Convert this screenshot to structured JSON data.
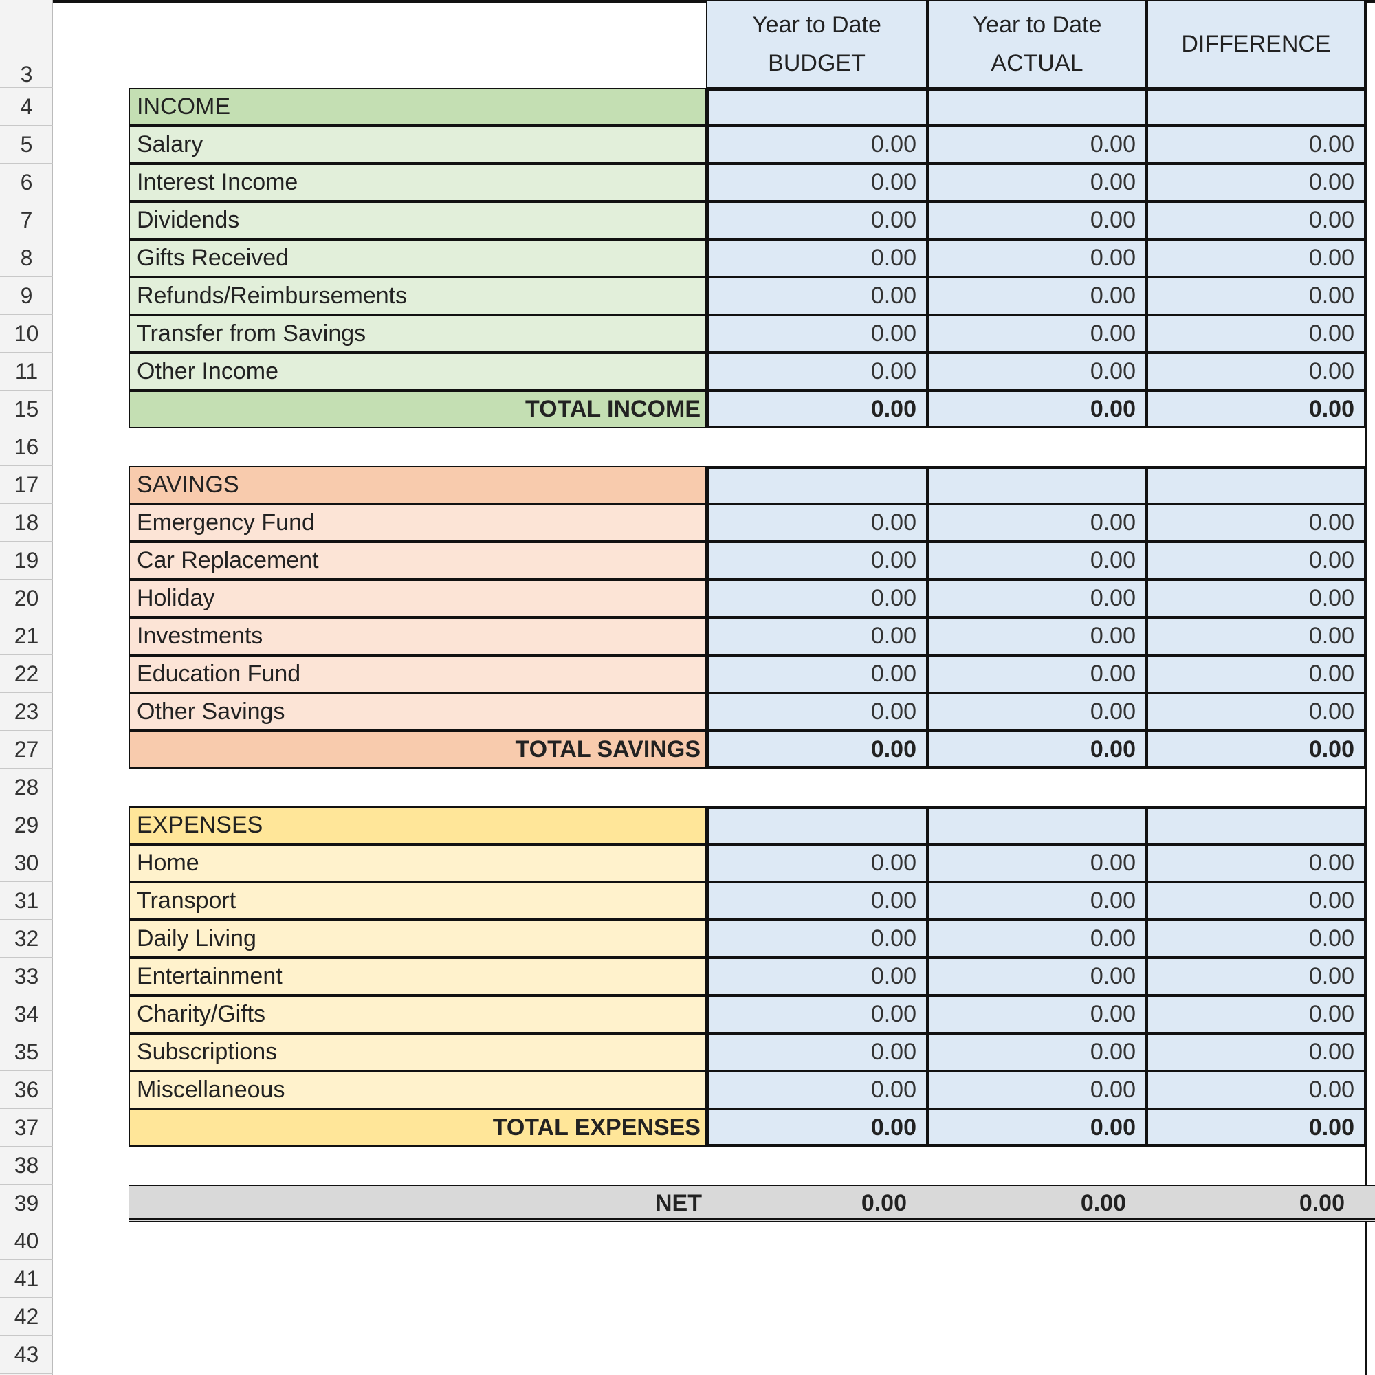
{
  "headers": [
    [
      "Year to Date",
      "BUDGET"
    ],
    [
      "Year to Date",
      "ACTUAL"
    ],
    [
      "DIFFERENCE"
    ]
  ],
  "row_numbers": [
    "3",
    "4",
    "5",
    "6",
    "7",
    "8",
    "9",
    "10",
    "11",
    "15",
    "16",
    "17",
    "18",
    "19",
    "20",
    "21",
    "22",
    "23",
    "27",
    "28",
    "29",
    "30",
    "31",
    "32",
    "33",
    "34",
    "35",
    "36",
    "37",
    "38",
    "39",
    "40",
    "41",
    "42",
    "43"
  ],
  "sections": [
    {
      "title": "INCOME",
      "rows": [
        {
          "label": "Salary",
          "values": [
            "0.00",
            "0.00",
            "0.00"
          ]
        },
        {
          "label": "Interest Income",
          "values": [
            "0.00",
            "0.00",
            "0.00"
          ]
        },
        {
          "label": "Dividends",
          "values": [
            "0.00",
            "0.00",
            "0.00"
          ]
        },
        {
          "label": "Gifts Received",
          "values": [
            "0.00",
            "0.00",
            "0.00"
          ]
        },
        {
          "label": "Refunds/Reimbursements",
          "values": [
            "0.00",
            "0.00",
            "0.00"
          ]
        },
        {
          "label": "Transfer from Savings",
          "values": [
            "0.00",
            "0.00",
            "0.00"
          ]
        },
        {
          "label": "Other Income",
          "values": [
            "0.00",
            "0.00",
            "0.00"
          ]
        }
      ],
      "total": {
        "label": "TOTAL INCOME",
        "values": [
          "0.00",
          "0.00",
          "0.00"
        ]
      }
    },
    {
      "title": "SAVINGS",
      "rows": [
        {
          "label": "Emergency Fund",
          "values": [
            "0.00",
            "0.00",
            "0.00"
          ]
        },
        {
          "label": "Car Replacement",
          "values": [
            "0.00",
            "0.00",
            "0.00"
          ]
        },
        {
          "label": "Holiday",
          "values": [
            "0.00",
            "0.00",
            "0.00"
          ]
        },
        {
          "label": "Investments",
          "values": [
            "0.00",
            "0.00",
            "0.00"
          ]
        },
        {
          "label": "Education Fund",
          "values": [
            "0.00",
            "0.00",
            "0.00"
          ]
        },
        {
          "label": "Other Savings",
          "values": [
            "0.00",
            "0.00",
            "0.00"
          ]
        }
      ],
      "total": {
        "label": "TOTAL SAVINGS",
        "values": [
          "0.00",
          "0.00",
          "0.00"
        ]
      }
    },
    {
      "title": "EXPENSES",
      "rows": [
        {
          "label": "Home",
          "values": [
            "0.00",
            "0.00",
            "0.00"
          ]
        },
        {
          "label": "Transport",
          "values": [
            "0.00",
            "0.00",
            "0.00"
          ]
        },
        {
          "label": "Daily Living",
          "values": [
            "0.00",
            "0.00",
            "0.00"
          ]
        },
        {
          "label": "Entertainment",
          "values": [
            "0.00",
            "0.00",
            "0.00"
          ]
        },
        {
          "label": "Charity/Gifts",
          "values": [
            "0.00",
            "0.00",
            "0.00"
          ]
        },
        {
          "label": "Subscriptions",
          "values": [
            "0.00",
            "0.00",
            "0.00"
          ]
        },
        {
          "label": "Miscellaneous",
          "values": [
            "0.00",
            "0.00",
            "0.00"
          ]
        }
      ],
      "total": {
        "label": "TOTAL EXPENSES",
        "values": [
          "0.00",
          "0.00",
          "0.00"
        ]
      }
    }
  ],
  "net": {
    "label": "NET",
    "values": [
      "0.00",
      "0.00",
      "0.00"
    ]
  }
}
